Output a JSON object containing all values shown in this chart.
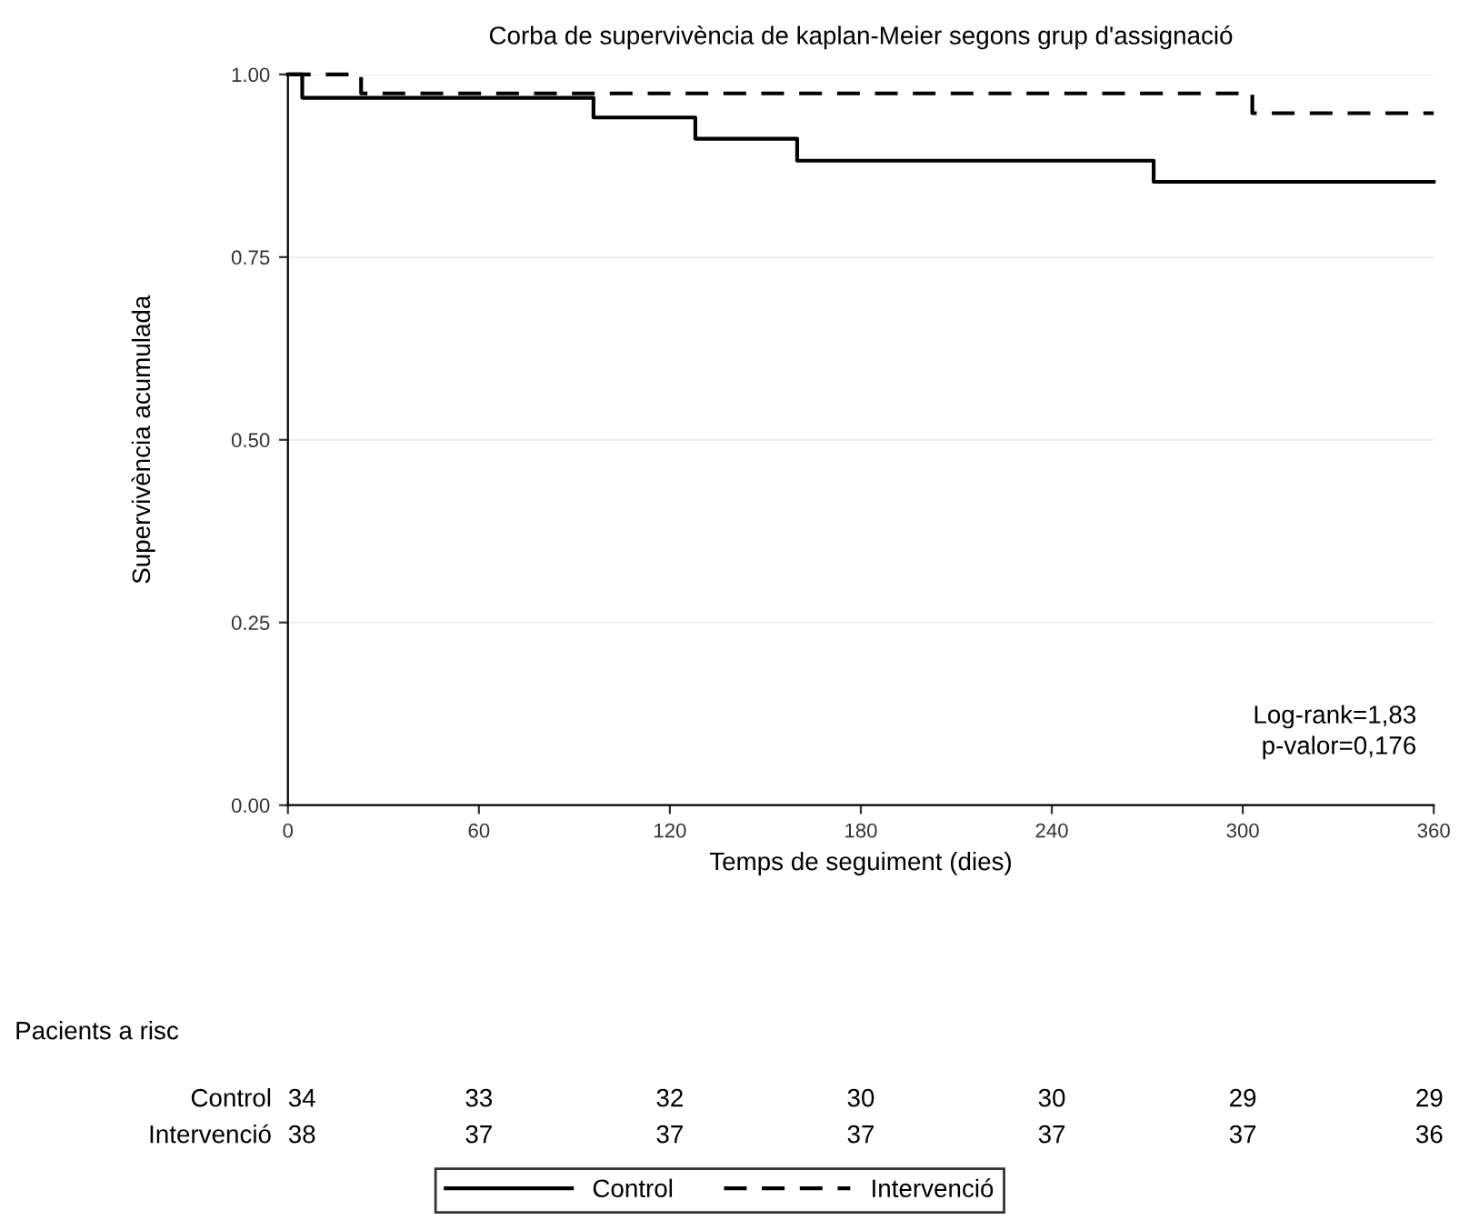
{
  "chart_data": {
    "type": "step",
    "title": "Corba de supervivència de kaplan-Meier segons grup d'assignació",
    "xlabel": "Temps de seguiment (dies)",
    "ylabel": "Supervivència acumulada",
    "series": [
      {
        "name": "Control",
        "color": "#000000",
        "line_style": "solid",
        "x": [
          0,
          4.5,
          96,
          128,
          160,
          272,
          360
        ],
        "values": [
          1,
          0.968,
          0.941,
          0.912,
          0.882,
          0.853,
          0.853
        ]
      },
      {
        "name": "Intervenció",
        "color": "#000000",
        "line_style": "dashed",
        "x": [
          0,
          23,
          303,
          360
        ],
        "values": [
          1,
          0.974,
          0.947,
          0.947
        ]
      }
    ],
    "xlim": [
      0,
      360
    ],
    "xticks": [
      0,
      60,
      120,
      180,
      240,
      300,
      360
    ],
    "ylim": [
      0,
      1
    ],
    "yticks": [
      {
        "value": 0,
        "label": "0.00"
      },
      {
        "value": 0.25,
        "label": "0.25"
      },
      {
        "value": 0.5,
        "label": "0.50"
      },
      {
        "value": 0.75,
        "label": "0.75"
      },
      {
        "value": 1,
        "label": "1.00"
      }
    ],
    "grid": "y",
    "legend": "bottom",
    "annotations": [
      "Log-rank=1,83",
      "p-valor=0,176",
      "Pacients a risc",
      "Control",
      "34",
      "33",
      "32",
      "30",
      "30",
      "29",
      "29",
      "Intervenció",
      "38",
      "37",
      "37",
      "37",
      "37",
      "37",
      "36"
    ]
  }
}
